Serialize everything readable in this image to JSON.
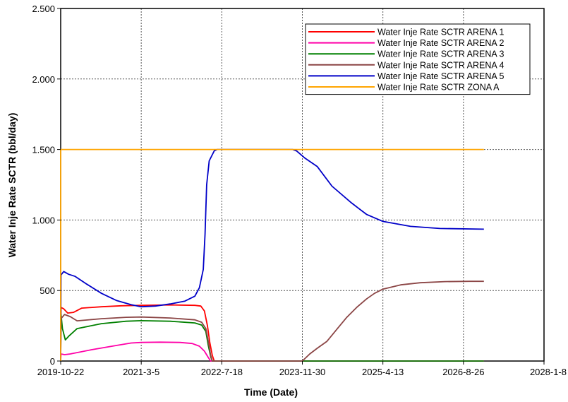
{
  "chart_data": {
    "type": "line",
    "xlabel": "Time (Date)",
    "ylabel": "Water Inje Rate SCTR (bbl/day)",
    "x_axis": {
      "type": "date",
      "start": "2019-10-22",
      "end": "2028-1-8",
      "ticks": [
        "2019-10-22",
        "2021-3-5",
        "2022-7-18",
        "2023-11-30",
        "2025-4-13",
        "2026-8-26",
        "2028-1-8"
      ]
    },
    "y_axis": {
      "ylim": [
        0,
        2500
      ],
      "ticks": [
        0,
        500,
        1000,
        1500,
        2000,
        2500
      ],
      "tick_labels": [
        "0",
        "500",
        "1.000",
        "1.500",
        "2.000",
        "2.500"
      ]
    },
    "grid": true,
    "legend_position": "top-right",
    "series": [
      {
        "name": "Water Inje Rate SCTR ARENA 1",
        "color": "#ff0000",
        "points": [
          [
            "2019-10-22",
            0
          ],
          [
            "2019-10-24",
            380
          ],
          [
            "2019-11-10",
            370
          ],
          [
            "2019-12-05",
            340
          ],
          [
            "2020-01-10",
            345
          ],
          [
            "2020-03-01",
            375
          ],
          [
            "2020-07-01",
            385
          ],
          [
            "2020-11-01",
            392
          ],
          [
            "2021-03-05",
            395
          ],
          [
            "2021-09-01",
            398
          ],
          [
            "2022-02-01",
            395
          ],
          [
            "2022-03-10",
            390
          ],
          [
            "2022-04-01",
            355
          ],
          [
            "2022-04-20",
            250
          ],
          [
            "2022-05-05",
            130
          ],
          [
            "2022-05-20",
            40
          ],
          [
            "2022-06-01",
            0
          ],
          [
            "2026-12-31",
            0
          ]
        ]
      },
      {
        "name": "Water Inje Rate SCTR ARENA 2",
        "color": "#ff00a8",
        "points": [
          [
            "2019-10-22",
            0
          ],
          [
            "2019-10-24",
            50
          ],
          [
            "2019-11-15",
            45
          ],
          [
            "2019-12-20",
            50
          ],
          [
            "2020-05-01",
            80
          ],
          [
            "2020-10-01",
            110
          ],
          [
            "2021-01-01",
            128
          ],
          [
            "2021-03-05",
            132
          ],
          [
            "2021-07-01",
            134
          ],
          [
            "2021-11-01",
            132
          ],
          [
            "2022-01-15",
            124
          ],
          [
            "2022-03-01",
            105
          ],
          [
            "2022-04-01",
            70
          ],
          [
            "2022-04-25",
            25
          ],
          [
            "2022-05-10",
            0
          ],
          [
            "2026-12-31",
            0
          ]
        ]
      },
      {
        "name": "Water Inje Rate SCTR ARENA 3",
        "color": "#008000",
        "points": [
          [
            "2019-10-22",
            0
          ],
          [
            "2019-10-24",
            330
          ],
          [
            "2019-11-02",
            230
          ],
          [
            "2019-11-20",
            150
          ],
          [
            "2019-12-10",
            175
          ],
          [
            "2020-02-01",
            230
          ],
          [
            "2020-07-01",
            265
          ],
          [
            "2020-12-01",
            282
          ],
          [
            "2021-03-05",
            286
          ],
          [
            "2021-09-01",
            282
          ],
          [
            "2022-02-01",
            270
          ],
          [
            "2022-03-15",
            255
          ],
          [
            "2022-04-10",
            210
          ],
          [
            "2022-04-25",
            110
          ],
          [
            "2022-05-10",
            30
          ],
          [
            "2022-05-20",
            0
          ],
          [
            "2026-12-31",
            0
          ]
        ]
      },
      {
        "name": "Water Inje Rate SCTR ARENA 4",
        "color": "#8b4545",
        "points": [
          [
            "2019-10-22",
            0
          ],
          [
            "2019-10-24",
            300
          ],
          [
            "2019-11-15",
            330
          ],
          [
            "2019-12-20",
            315
          ],
          [
            "2020-02-01",
            285
          ],
          [
            "2020-07-01",
            300
          ],
          [
            "2020-12-01",
            310
          ],
          [
            "2021-03-05",
            312
          ],
          [
            "2021-09-01",
            305
          ],
          [
            "2022-02-01",
            292
          ],
          [
            "2022-03-15",
            275
          ],
          [
            "2022-04-10",
            230
          ],
          [
            "2022-04-25",
            140
          ],
          [
            "2022-05-10",
            40
          ],
          [
            "2022-05-20",
            0
          ],
          [
            "2023-11-30",
            0
          ],
          [
            "2024-01-15",
            50
          ],
          [
            "2024-03-01",
            90
          ],
          [
            "2024-05-01",
            140
          ],
          [
            "2024-07-01",
            225
          ],
          [
            "2024-09-01",
            310
          ],
          [
            "2024-11-01",
            380
          ],
          [
            "2025-01-01",
            440
          ],
          [
            "2025-02-20",
            480
          ],
          [
            "2025-04-13",
            510
          ],
          [
            "2025-08-01",
            540
          ],
          [
            "2025-12-01",
            555
          ],
          [
            "2026-05-01",
            563
          ],
          [
            "2026-10-01",
            565
          ],
          [
            "2026-12-31",
            565
          ]
        ]
      },
      {
        "name": "Water Inje Rate SCTR ARENA 5",
        "color": "#0000c8",
        "points": [
          [
            "2019-10-22",
            0
          ],
          [
            "2019-10-24",
            610
          ],
          [
            "2019-11-10",
            635
          ],
          [
            "2019-12-10",
            615
          ],
          [
            "2020-01-20",
            600
          ],
          [
            "2020-04-01",
            545
          ],
          [
            "2020-07-01",
            480
          ],
          [
            "2020-10-01",
            430
          ],
          [
            "2021-01-01",
            400
          ],
          [
            "2021-03-05",
            385
          ],
          [
            "2021-06-01",
            390
          ],
          [
            "2021-09-01",
            405
          ],
          [
            "2021-12-01",
            425
          ],
          [
            "2022-02-01",
            460
          ],
          [
            "2022-03-01",
            520
          ],
          [
            "2022-03-25",
            650
          ],
          [
            "2022-04-05",
            900
          ],
          [
            "2022-04-15",
            1250
          ],
          [
            "2022-05-01",
            1420
          ],
          [
            "2022-06-01",
            1490
          ],
          [
            "2022-06-20",
            1500
          ],
          [
            "2023-10-01",
            1500
          ],
          [
            "2023-10-25",
            1490
          ],
          [
            "2023-12-15",
            1440
          ],
          [
            "2024-03-01",
            1380
          ],
          [
            "2024-06-01",
            1240
          ],
          [
            "2024-10-01",
            1120
          ],
          [
            "2025-01-01",
            1040
          ],
          [
            "2025-04-13",
            990
          ],
          [
            "2025-10-01",
            955
          ],
          [
            "2026-04-01",
            940
          ],
          [
            "2026-12-31",
            935
          ]
        ]
      },
      {
        "name": "Water Inje Rate SCTR ZONA A",
        "color": "#ffa500",
        "points": [
          [
            "2019-10-22",
            0
          ],
          [
            "2019-10-22",
            1500
          ],
          [
            "2026-12-31",
            1500
          ]
        ]
      }
    ]
  }
}
